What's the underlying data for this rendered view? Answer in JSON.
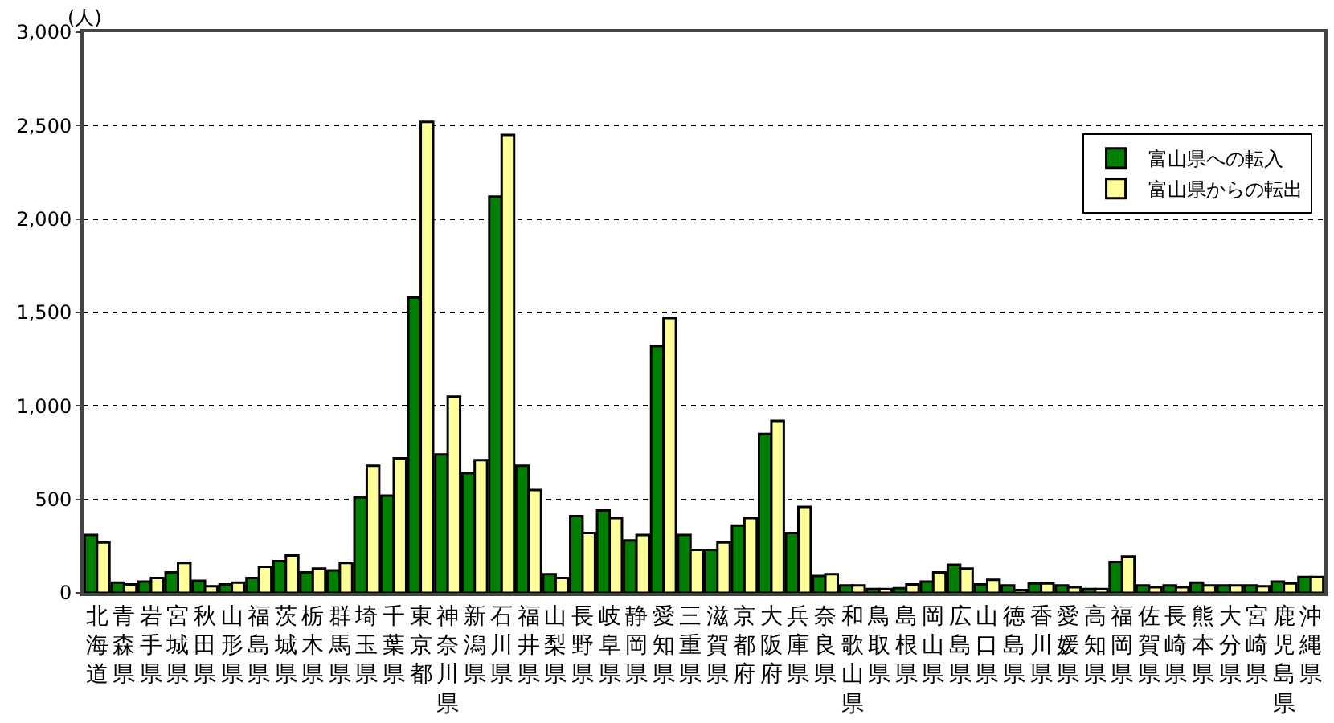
{
  "chart_data": {
    "type": "bar",
    "ylabel": "(人)",
    "categories": [
      "北海道",
      "青森県",
      "岩手県",
      "宮城県",
      "秋田県",
      "山形県",
      "福島県",
      "茨城県",
      "栃木県",
      "群馬県",
      "埼玉県",
      "千葉県",
      "東京都",
      "神奈川県",
      "新潟県",
      "石川県",
      "福井県",
      "山梨県",
      "長野県",
      "岐阜県",
      "静岡県",
      "愛知県",
      "三重県",
      "滋賀県",
      "京都府",
      "大阪府",
      "兵庫県",
      "奈良県",
      "和歌山県",
      "鳥取県",
      "島根県",
      "岡山県",
      "広島県",
      "山口県",
      "徳島県",
      "香川県",
      "愛媛県",
      "高知県",
      "福岡県",
      "佐賀県",
      "長崎県",
      "熊本県",
      "大分県",
      "宮崎県",
      "鹿児島県",
      "沖縄県"
    ],
    "series": [
      {
        "name": "富山県への転入",
        "color": "#008000",
        "values": [
          310,
          55,
          60,
          110,
          65,
          45,
          80,
          170,
          110,
          120,
          510,
          520,
          1580,
          740,
          640,
          2120,
          680,
          100,
          410,
          440,
          280,
          1320,
          310,
          230,
          360,
          850,
          320,
          90,
          40,
          20,
          25,
          60,
          150,
          45,
          40,
          50,
          40,
          20,
          165,
          40,
          40,
          55,
          40,
          40,
          60,
          85
        ]
      },
      {
        "name": "富山県からの転出",
        "color": "#ffff99",
        "values": [
          270,
          45,
          80,
          160,
          35,
          55,
          140,
          200,
          130,
          160,
          680,
          720,
          2520,
          1050,
          710,
          2450,
          550,
          80,
          320,
          400,
          310,
          1470,
          230,
          270,
          400,
          920,
          460,
          100,
          40,
          20,
          45,
          110,
          130,
          70,
          15,
          50,
          30,
          20,
          195,
          30,
          30,
          40,
          40,
          35,
          50,
          85
        ]
      }
    ],
    "ylim": [
      0,
      3000
    ],
    "yticks": [
      0,
      {
        "value": 500,
        "label": "500"
      },
      {
        "value": 1000,
        "label": "1,000"
      },
      {
        "value": 1500,
        "label": "1,500"
      },
      {
        "value": 2000,
        "label": "2,000"
      },
      {
        "value": 2500,
        "label": "2,500"
      },
      {
        "value": 3000,
        "label": "3,000"
      }
    ],
    "grid": "y",
    "legend": "top right"
  }
}
